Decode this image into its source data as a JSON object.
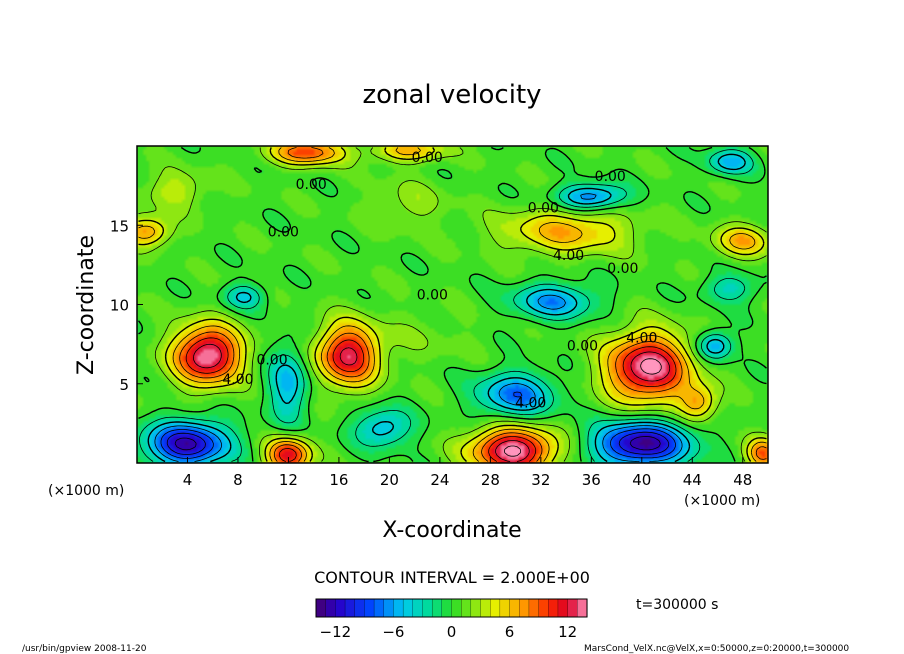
{
  "chart_data": {
    "type": "heatmap",
    "title": "zonal velocity",
    "xlabel": "X-coordinate",
    "ylabel": "Z-coordinate",
    "x_unit_left": "(×1000 m)",
    "x_unit_right": "(×1000 m)",
    "xlim": [
      0,
      50
    ],
    "ylim": [
      0,
      20
    ],
    "x_ticks": [
      4,
      8,
      12,
      16,
      20,
      24,
      28,
      32,
      36,
      40,
      44,
      48
    ],
    "y_ticks": [
      5,
      10,
      15
    ],
    "contour_interval_text": "CONTOUR INTERVAL = 2.000E+00",
    "time_text": "t=300000 s",
    "colorbar": {
      "range": [
        -14,
        14
      ],
      "ticks": [
        -12,
        -6,
        0,
        6,
        12
      ]
    },
    "contour_labels": [
      {
        "text": "0.00",
        "x": 23,
        "z": 19.0
      },
      {
        "text": "0.00",
        "x": 13.8,
        "z": 17.3
      },
      {
        "text": "0.00",
        "x": 37.5,
        "z": 17.8
      },
      {
        "text": "0.00",
        "x": 32.2,
        "z": 15.8
      },
      {
        "text": "0.00",
        "x": 11.6,
        "z": 14.3
      },
      {
        "text": "4.00",
        "x": 34.2,
        "z": 12.8
      },
      {
        "text": "0.00",
        "x": 38.5,
        "z": 12.0
      },
      {
        "text": "0.00",
        "x": 23.4,
        "z": 10.3
      },
      {
        "text": "4.00",
        "x": 40.0,
        "z": 7.6
      },
      {
        "text": "0.00",
        "x": 35.3,
        "z": 7.1
      },
      {
        "text": "0.00",
        "x": 10.7,
        "z": 6.2
      },
      {
        "text": "4.00",
        "x": 8.0,
        "z": 5.0
      },
      {
        "text": "4.00",
        "x": 31.2,
        "z": 3.5
      }
    ],
    "blobs": [
      {
        "x": 5.6,
        "z": 6.8,
        "amp": 14,
        "sx": 2.6,
        "sz": 1.8
      },
      {
        "x": 16.7,
        "z": 6.8,
        "amp": 12,
        "sx": 2.4,
        "sz": 1.9
      },
      {
        "x": 40.5,
        "z": 6.0,
        "amp": 14,
        "sx": 3.2,
        "sz": 2.1
      },
      {
        "x": 44.5,
        "z": 3.8,
        "amp": 6,
        "sx": 1.5,
        "sz": 1.1
      },
      {
        "x": 29.8,
        "z": 0.8,
        "amp": 14,
        "sx": 3.2,
        "sz": 1.4
      },
      {
        "x": 12.0,
        "z": 0.5,
        "amp": 11,
        "sx": 1.7,
        "sz": 1.1
      },
      {
        "x": 4.0,
        "z": 1.2,
        "amp": -13,
        "sx": 3.2,
        "sz": 1.4
      },
      {
        "x": 40.0,
        "z": 1.2,
        "amp": -14,
        "sx": 3.6,
        "sz": 1.4
      },
      {
        "x": 49.6,
        "z": 0.6,
        "amp": 8,
        "sx": 1.3,
        "sz": 1.0
      },
      {
        "x": 30.0,
        "z": 4.3,
        "amp": -8,
        "sx": 3.0,
        "sz": 1.4
      },
      {
        "x": 12.0,
        "z": 5.0,
        "amp": -6,
        "sx": 1.6,
        "sz": 2.4
      },
      {
        "x": 19.5,
        "z": 2.2,
        "amp": -6,
        "sx": 2.2,
        "sz": 1.2
      },
      {
        "x": 45.8,
        "z": 7.4,
        "amp": -7,
        "sx": 1.4,
        "sz": 0.9
      },
      {
        "x": 8.5,
        "z": 10.5,
        "amp": -5,
        "sx": 1.6,
        "sz": 0.8
      },
      {
        "x": 33.0,
        "z": 10.2,
        "amp": -7,
        "sx": 3.2,
        "sz": 1.1
      },
      {
        "x": 47.0,
        "z": 11.0,
        "amp": -4,
        "sx": 2.2,
        "sz": 0.9
      },
      {
        "x": 0.8,
        "z": 14.6,
        "amp": 7,
        "sx": 1.8,
        "sz": 0.9
      },
      {
        "x": 34.0,
        "z": 14.6,
        "amp": 6,
        "sx": 5.0,
        "sz": 1.4
      },
      {
        "x": 48.0,
        "z": 14.0,
        "amp": 6,
        "sx": 2.2,
        "sz": 1.0
      },
      {
        "x": 13.5,
        "z": 19.6,
        "amp": 9,
        "sx": 2.8,
        "sz": 0.8
      },
      {
        "x": 21.5,
        "z": 19.7,
        "amp": 6,
        "sx": 2.8,
        "sz": 0.7
      },
      {
        "x": 36.0,
        "z": 16.8,
        "amp": -8,
        "sx": 2.6,
        "sz": 0.8
      },
      {
        "x": 47.0,
        "z": 19.0,
        "amp": -6,
        "sx": 1.8,
        "sz": 0.8
      },
      {
        "x": 3.0,
        "z": 17.2,
        "amp": 3,
        "sx": 2.6,
        "sz": 1.2
      },
      {
        "x": 21.5,
        "z": 16.3,
        "amp": 2,
        "sx": 3.0,
        "sz": 1.5
      },
      {
        "x": 22.5,
        "z": 8.0,
        "amp": 1,
        "sx": 4.0,
        "sz": 1.8
      }
    ],
    "background_value": 0.6
  },
  "footer": {
    "left": "/usr/bin/gpview   2008-11-20",
    "right": "MarsCond_VelX.nc@VelX,x=0:50000,z=0:20000,t=300000"
  }
}
